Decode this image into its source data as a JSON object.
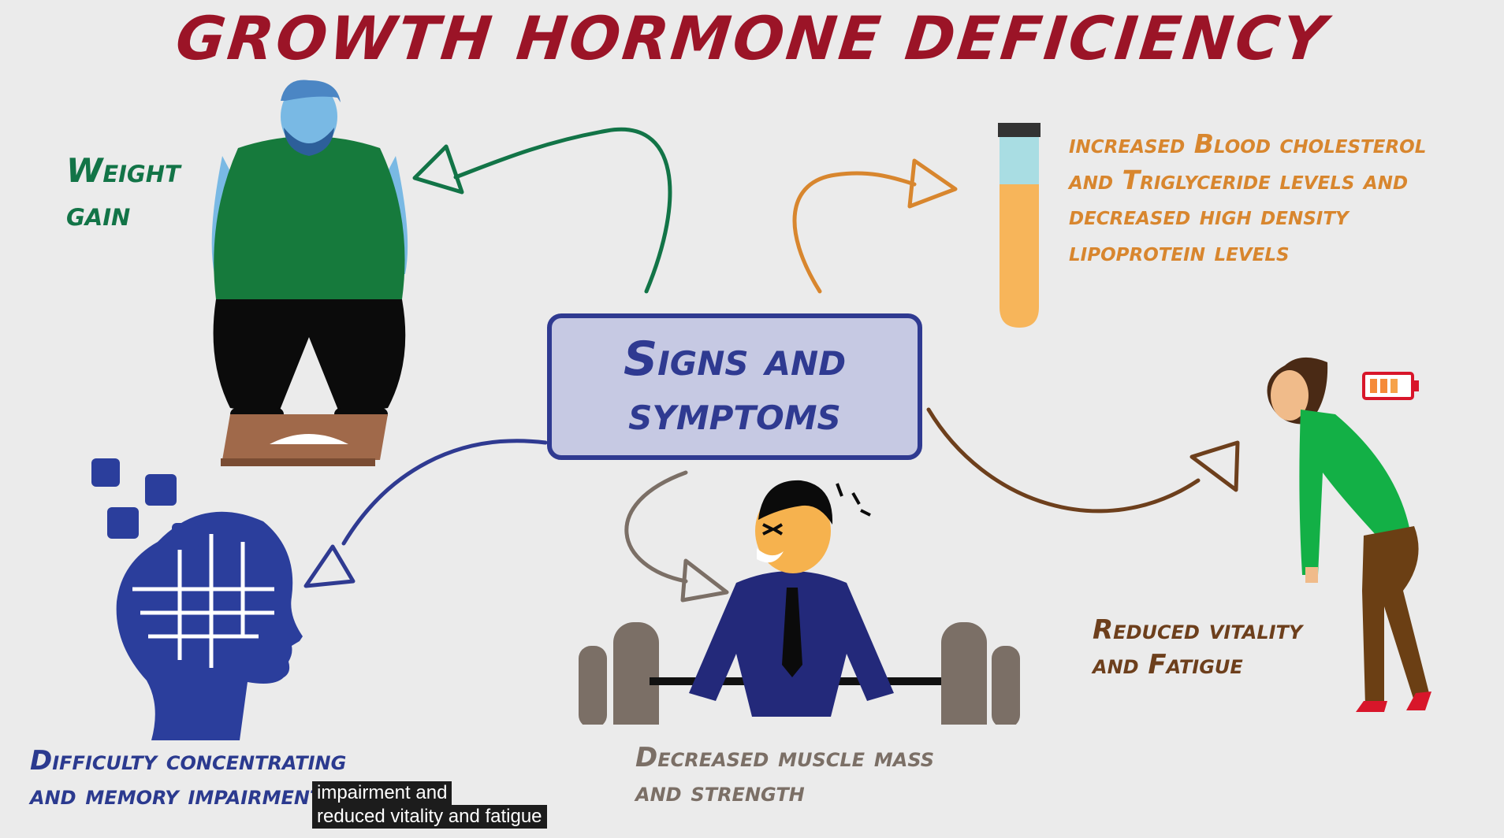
{
  "title": "Growth Hormone Deficiency",
  "center": {
    "text": "Signs and\nsymptoms"
  },
  "symptoms": {
    "weight_gain": "Weight\ngain",
    "cholesterol": "increased Blood cholesterol\nand Triglyceride levels and\ndecreased high density\nlipoprotein levels",
    "fatigue": "Reduced vitality\nand Fatigue",
    "concentration": "Difficulty concentrating\nand memory impairment",
    "muscle": "Decreased muscle mass\nand strength"
  },
  "caption": {
    "line1": "impairment and",
    "line2": "reduced vitality and fatigue"
  },
  "colors": {
    "title": "#9b1427",
    "weight": "#127447",
    "cholesterol": "#d8862e",
    "fatigue": "#6d3f1c",
    "concentration": "#2b3a8f",
    "muscle": "#7b6f66",
    "box_fill": "#c6c9e3",
    "box_border": "#2f3a91"
  },
  "icons": [
    "overweight-man-on-scale-icon",
    "test-tube-icon",
    "tired-woman-icon",
    "low-battery-icon",
    "puzzle-head-icon",
    "weightlifter-icon"
  ]
}
